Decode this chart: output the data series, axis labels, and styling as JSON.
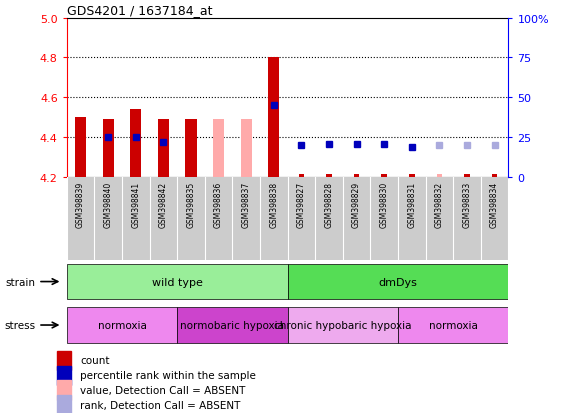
{
  "title": "GDS4201 / 1637184_at",
  "samples": [
    "GSM398839",
    "GSM398840",
    "GSM398841",
    "GSM398842",
    "GSM398835",
    "GSM398836",
    "GSM398837",
    "GSM398838",
    "GSM398827",
    "GSM398828",
    "GSM398829",
    "GSM398830",
    "GSM398831",
    "GSM398832",
    "GSM398833",
    "GSM398834"
  ],
  "bar_values": [
    4.5,
    4.49,
    4.54,
    4.49,
    4.49,
    null,
    null,
    4.8,
    null,
    null,
    null,
    null,
    null,
    null,
    null,
    null
  ],
  "bar_absent_values": [
    null,
    null,
    null,
    null,
    null,
    4.49,
    4.49,
    null,
    null,
    null,
    null,
    null,
    null,
    null,
    null,
    null
  ],
  "bar_small_values": [
    null,
    null,
    null,
    null,
    null,
    null,
    null,
    null,
    4.21,
    4.21,
    4.21,
    4.21,
    4.21,
    null,
    4.21,
    4.21
  ],
  "bar_small_absent": [
    null,
    null,
    null,
    null,
    null,
    null,
    null,
    null,
    null,
    null,
    null,
    null,
    null,
    4.21,
    null,
    null
  ],
  "rank_pct_present": [
    null,
    25,
    25,
    22,
    null,
    null,
    null,
    45,
    20,
    21,
    21,
    21,
    19,
    null,
    null,
    null
  ],
  "rank_pct_absent": [
    null,
    null,
    null,
    null,
    null,
    null,
    null,
    null,
    null,
    null,
    null,
    null,
    null,
    20,
    20,
    20
  ],
  "bar_color_present": "#cc0000",
  "bar_color_absent": "#ffaaaa",
  "rank_color_present": "#0000bb",
  "rank_color_absent": "#aaaadd",
  "ylim_left": [
    4.2,
    5.0
  ],
  "ylim_right": [
    0,
    100
  ],
  "yticks_left": [
    4.2,
    4.4,
    4.6,
    4.8,
    5.0
  ],
  "yticks_right": [
    0,
    25,
    50,
    75,
    100
  ],
  "dotted_lines": [
    4.4,
    4.6,
    4.8
  ],
  "strain_groups": [
    {
      "label": "wild type",
      "start": 0,
      "end": 8,
      "color": "#99ee99"
    },
    {
      "label": "dmDys",
      "start": 8,
      "end": 16,
      "color": "#55dd55"
    }
  ],
  "stress_groups": [
    {
      "label": "normoxia",
      "start": 0,
      "end": 4,
      "color": "#ee88ee"
    },
    {
      "label": "normobaric hypoxia",
      "start": 4,
      "end": 8,
      "color": "#cc44cc"
    },
    {
      "label": "chronic hypobaric hypoxia",
      "start": 8,
      "end": 12,
      "color": "#eeaaee"
    },
    {
      "label": "normoxia",
      "start": 12,
      "end": 16,
      "color": "#ee88ee"
    }
  ],
  "legend_items": [
    {
      "label": "count",
      "color": "#cc0000"
    },
    {
      "label": "percentile rank within the sample",
      "color": "#0000bb"
    },
    {
      "label": "value, Detection Call = ABSENT",
      "color": "#ffaaaa"
    },
    {
      "label": "rank, Detection Call = ABSENT",
      "color": "#aaaadd"
    }
  ],
  "bar_width": 0.4,
  "rank_markersize": 5,
  "bg_color": "#ffffff",
  "cell_bg": "#cccccc",
  "cell_border": "#aaaaaa"
}
